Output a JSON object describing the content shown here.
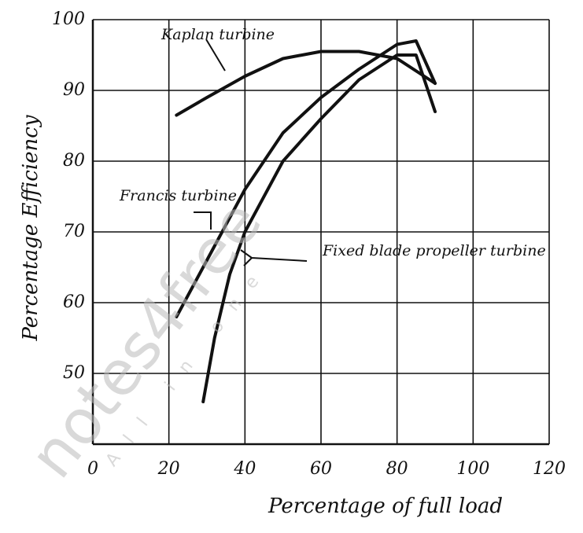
{
  "chart_data": {
    "type": "line",
    "x_label": "Percentage of full load",
    "y_label": "Percentage Efficiency",
    "xlim": [
      0,
      120
    ],
    "xticks": [
      0,
      20,
      40,
      60,
      80,
      100,
      120
    ],
    "ylim": [
      40,
      100
    ],
    "yticks": [
      50,
      60,
      70,
      80,
      90,
      100
    ],
    "grid": true,
    "watermark": [
      "notes4free",
      "All in one"
    ],
    "series": [
      {
        "name": "Kaplan turbine",
        "color": "#111111",
        "x": [
          22,
          30,
          40,
          50,
          60,
          70,
          80,
          90
        ],
        "values": [
          86.5,
          89,
          92,
          94.5,
          95.5,
          95.5,
          94.5,
          91
        ]
      },
      {
        "name": "Francis turbine",
        "color": "#111111",
        "x": [
          22,
          30,
          40,
          50,
          60,
          70,
          80,
          85,
          90
        ],
        "values": [
          58,
          66,
          76,
          84,
          89,
          93,
          96.5,
          97,
          91
        ]
      },
      {
        "name": "Fixed blade propeller turbine",
        "color": "#111111",
        "x": [
          29,
          32,
          36,
          40,
          50,
          60,
          70,
          80,
          85,
          90
        ],
        "values": [
          46,
          55,
          64,
          70,
          80,
          86,
          91.5,
          95,
          95,
          87
        ]
      }
    ]
  }
}
